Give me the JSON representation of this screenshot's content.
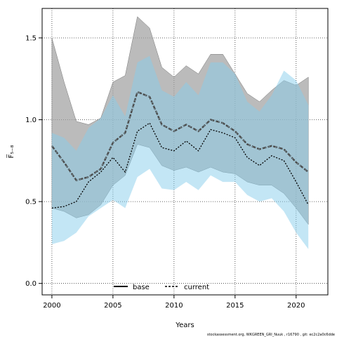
{
  "chart_data": {
    "type": "line",
    "title": "",
    "xlabel": "Years",
    "ylabel": "F̅₅₋₈",
    "xlim": [
      1999.2,
      2022.6
    ],
    "ylim": [
      -0.07,
      1.68
    ],
    "xticks": [
      2000,
      2005,
      2010,
      2015,
      2020
    ],
    "yticks": [
      0.0,
      0.5,
      1.0,
      1.5
    ],
    "xtick_labels": [
      "2000",
      "2005",
      "2010",
      "2015",
      "2020"
    ],
    "ytick_labels": [
      "0.0",
      "0.5",
      "1.0",
      "1.5"
    ],
    "grid": "dotted at ticks",
    "legend_position": "bottom-center",
    "colors": {
      "base_band": "#9e9e9e",
      "current_band": "#87ceeb",
      "base_line": "#555555",
      "current_line": "#000000"
    },
    "x": [
      2000,
      2001,
      2002,
      2003,
      2004,
      2005,
      2006,
      2007,
      2008,
      2009,
      2010,
      2011,
      2012,
      2013,
      2014,
      2015,
      2016,
      2017,
      2018,
      2019,
      2020,
      2021
    ],
    "series": [
      {
        "name": "base",
        "style": "dashed-thick",
        "values": [
          0.84,
          0.74,
          0.63,
          0.65,
          0.7,
          0.86,
          0.92,
          1.17,
          1.14,
          0.97,
          0.93,
          0.97,
          0.93,
          1.0,
          0.98,
          0.93,
          0.85,
          0.82,
          0.84,
          0.82,
          0.74,
          0.68
        ],
        "lower": [
          0.46,
          0.44,
          0.4,
          0.42,
          0.48,
          0.6,
          0.66,
          0.85,
          0.83,
          0.72,
          0.69,
          0.71,
          0.68,
          0.71,
          0.68,
          0.67,
          0.62,
          0.6,
          0.6,
          0.55,
          0.46,
          0.36
        ],
        "upper": [
          1.5,
          1.23,
          0.99,
          0.97,
          1.01,
          1.23,
          1.27,
          1.63,
          1.56,
          1.32,
          1.26,
          1.33,
          1.28,
          1.4,
          1.4,
          1.28,
          1.16,
          1.11,
          1.18,
          1.24,
          1.21,
          1.26
        ]
      },
      {
        "name": "current",
        "style": "dotted",
        "values": [
          0.46,
          0.47,
          0.5,
          0.62,
          0.68,
          0.77,
          0.68,
          0.93,
          0.98,
          0.83,
          0.81,
          0.87,
          0.81,
          0.94,
          0.92,
          0.89,
          0.77,
          0.72,
          0.78,
          0.75,
          0.62,
          0.48
        ],
        "lower": [
          0.24,
          0.26,
          0.31,
          0.41,
          0.46,
          0.51,
          0.46,
          0.65,
          0.7,
          0.58,
          0.57,
          0.62,
          0.57,
          0.66,
          0.62,
          0.62,
          0.54,
          0.5,
          0.52,
          0.44,
          0.31,
          0.21
        ],
        "upper": [
          0.92,
          0.89,
          0.81,
          0.95,
          1.01,
          1.15,
          1.02,
          1.35,
          1.39,
          1.18,
          1.14,
          1.23,
          1.15,
          1.35,
          1.35,
          1.28,
          1.11,
          1.05,
          1.15,
          1.3,
          1.24,
          1.09
        ]
      }
    ],
    "credit": "stockassessment.org, WKGREEN_GRI_Nuuk , r16790 , git: ec2c2a0c6dde"
  }
}
